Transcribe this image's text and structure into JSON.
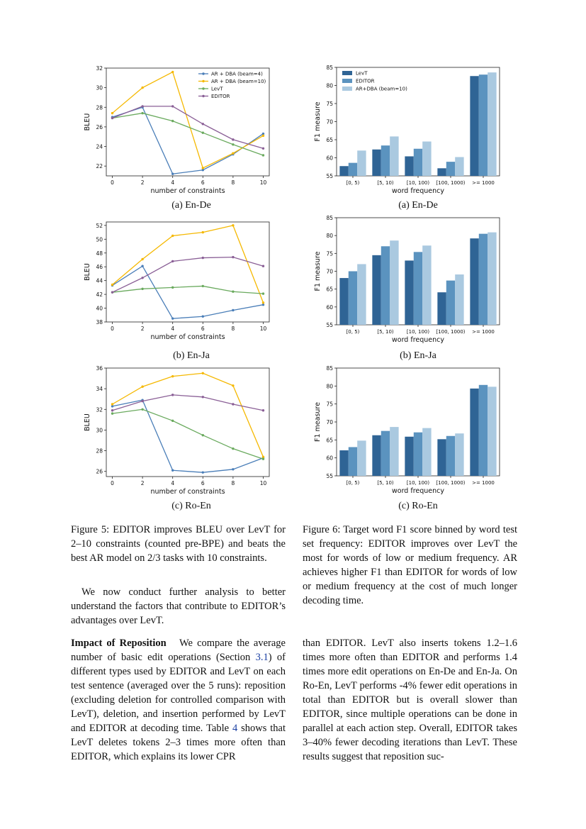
{
  "colors": {
    "ar_dba_beam4": "#4a7eb8",
    "ar_dba_beam10": "#f5b800",
    "levt_line": "#6aaa5e",
    "editor_line": "#8a5f96",
    "bar_levt": "#2f6495",
    "bar_editor": "#5b93bf",
    "bar_ardba": "#aac9e0"
  },
  "subcaptions": {
    "a_left": "(a) En-De",
    "a_right": "(a) En-De",
    "b_left": "(b) En-Ja",
    "b_right": "(b) En-Ja",
    "c_left": "(c) Ro-En",
    "c_right": "(c) Ro-En"
  },
  "fig5_caption": "Figure 5: EDITOR improves BLEU over LevT for 2–10 constraints (counted pre-BPE) and beats the best AR model on 2/3 tasks with 10 constraints.",
  "fig6_caption": "Figure 6: Target word F1 score binned by word test set frequency: EDITOR improves over LevT the most for words of low or medium frequency. AR achieves higher F1 than EDITOR for words of low or medium frequency at the cost of much longer decoding time.",
  "text": {
    "intro_para": "We now conduct further analysis to better understand the factors that contribute to EDITOR’s advantages over LevT.",
    "reposition_heading": "Impact of Reposition",
    "reposition_p1": "We compare the average number of basic edit operations (Section",
    "reposition_p1_ref": "3.1",
    "reposition_p2": ") of different types used by EDITOR and LevT on each test sentence (averaged over the 5 runs): reposition (excluding deletion for controlled comparison with LevT), deletion, and insertion performed by LevT and EDITOR at decoding time. Table",
    "reposition_p2_ref": "4",
    "reposition_p3": "shows that LevT deletes tokens 2–3 times more often than EDITOR, which explains its lower CPR",
    "right_col_para": "than EDITOR. LevT also inserts tokens 1.2–1.6 times more often than EDITOR and performs 1.4 times more edit operations on En-De and En-Ja. On Ro-En, LevT performs -4% fewer edit operations in total than EDITOR but is overall slower than EDITOR, since multiple operations can be done in parallel at each action step. Overall, EDITOR takes 3–40% fewer decoding iterations than LevT. These results suggest that reposition suc-"
  },
  "chart_data": [
    {
      "id": "fig5a",
      "type": "line",
      "xlabel": "number of constraints",
      "ylabel": "BLEU",
      "x": [
        0,
        2,
        4,
        6,
        8,
        10
      ],
      "xlim": [
        -0.4,
        10.4
      ],
      "ylim": [
        21.0,
        32.0
      ],
      "yticks": [
        22,
        24,
        26,
        28,
        30,
        32
      ],
      "legend": "top-right",
      "series": [
        {
          "name": "AR + DBA (beam=4)",
          "values": [
            27.0,
            28.0,
            21.2,
            21.6,
            23.2,
            25.3
          ]
        },
        {
          "name": "AR + DBA (beam=10)",
          "values": [
            27.4,
            30.0,
            31.6,
            21.8,
            23.3,
            25.1
          ]
        },
        {
          "name": "LevT",
          "values": [
            26.9,
            27.4,
            26.6,
            25.4,
            24.2,
            23.1
          ]
        },
        {
          "name": "EDITOR",
          "values": [
            26.9,
            28.1,
            28.1,
            26.3,
            24.7,
            23.8
          ]
        }
      ]
    },
    {
      "id": "fig5b",
      "type": "line",
      "xlabel": "number of constraints",
      "ylabel": "BLEU",
      "x": [
        0,
        2,
        4,
        6,
        8,
        10
      ],
      "xlim": [
        -0.4,
        10.4
      ],
      "ylim": [
        38.0,
        52.5
      ],
      "yticks": [
        38,
        40,
        42,
        44,
        46,
        48,
        50,
        52
      ],
      "series": [
        {
          "name": "AR + DBA (beam=4)",
          "values": [
            43.3,
            46.1,
            38.5,
            38.8,
            39.7,
            40.5
          ]
        },
        {
          "name": "AR + DBA (beam=10)",
          "values": [
            43.4,
            47.1,
            50.5,
            51.0,
            52.0,
            40.8
          ]
        },
        {
          "name": "LevT",
          "values": [
            42.3,
            42.8,
            43.0,
            43.2,
            42.4,
            42.1
          ]
        },
        {
          "name": "EDITOR",
          "values": [
            42.3,
            44.4,
            46.8,
            47.3,
            47.4,
            46.1
          ]
        }
      ]
    },
    {
      "id": "fig5c",
      "type": "line",
      "xlabel": "number of constraints",
      "ylabel": "BLEU",
      "x": [
        0,
        2,
        4,
        6,
        8,
        10
      ],
      "xlim": [
        -0.4,
        10.4
      ],
      "ylim": [
        25.5,
        36.0
      ],
      "yticks": [
        26,
        28,
        30,
        32,
        34,
        36
      ],
      "series": [
        {
          "name": "AR + DBA (beam=4)",
          "values": [
            32.3,
            32.9,
            26.1,
            25.9,
            26.2,
            27.3
          ]
        },
        {
          "name": "AR + DBA (beam=10)",
          "values": [
            32.5,
            34.2,
            35.2,
            35.5,
            34.3,
            27.4
          ]
        },
        {
          "name": "LevT",
          "values": [
            31.6,
            32.0,
            30.9,
            29.5,
            28.2,
            27.2
          ]
        },
        {
          "name": "EDITOR",
          "values": [
            31.9,
            32.8,
            33.4,
            33.2,
            32.5,
            31.9
          ]
        }
      ]
    },
    {
      "id": "fig6a",
      "type": "bar",
      "xlabel": "word frequency",
      "ylabel": "F1 measure",
      "categories": [
        "[0, 5)",
        "[5, 10)",
        "[10, 100)",
        "[100, 1000)",
        ">= 1000"
      ],
      "ylim": [
        55,
        85
      ],
      "yticks": [
        55,
        60,
        65,
        70,
        75,
        80,
        85
      ],
      "legend": "top-left",
      "series": [
        {
          "name": "LevT",
          "values": [
            57.7,
            62.3,
            60.4,
            57.1,
            82.6
          ]
        },
        {
          "name": "EDITOR",
          "values": [
            58.6,
            63.4,
            62.5,
            58.9,
            83.0
          ]
        },
        {
          "name": "AR+DBA (beam=10)",
          "values": [
            62.0,
            65.9,
            64.5,
            60.2,
            83.6
          ]
        }
      ]
    },
    {
      "id": "fig6b",
      "type": "bar",
      "xlabel": "word frequency",
      "ylabel": "F1 measure",
      "categories": [
        "[0, 5)",
        "[5, 10)",
        "[10, 100)",
        "[100, 1000)",
        ">= 1000"
      ],
      "ylim": [
        55,
        85
      ],
      "yticks": [
        55,
        60,
        65,
        70,
        75,
        80,
        85
      ],
      "series": [
        {
          "values": [
            68.1,
            74.5,
            73.0,
            64.1,
            79.2
          ]
        },
        {
          "values": [
            70.0,
            77.0,
            75.4,
            67.4,
            80.5
          ]
        },
        {
          "values": [
            72.0,
            78.6,
            77.2,
            69.1,
            80.9
          ]
        }
      ]
    },
    {
      "id": "fig6c",
      "type": "bar",
      "xlabel": "word frequency",
      "ylabel": "F1 measure",
      "categories": [
        "[0, 5)",
        "[5, 10)",
        "[10, 100)",
        "[100, 1000)",
        ">= 1000"
      ],
      "ylim": [
        55,
        85
      ],
      "yticks": [
        55,
        60,
        65,
        70,
        75,
        80,
        85
      ],
      "series": [
        {
          "values": [
            62.1,
            66.3,
            65.9,
            65.2,
            79.3
          ]
        },
        {
          "values": [
            63.0,
            67.5,
            67.1,
            66.1,
            80.3
          ]
        },
        {
          "values": [
            64.8,
            68.6,
            68.3,
            66.8,
            79.8
          ]
        }
      ]
    }
  ]
}
